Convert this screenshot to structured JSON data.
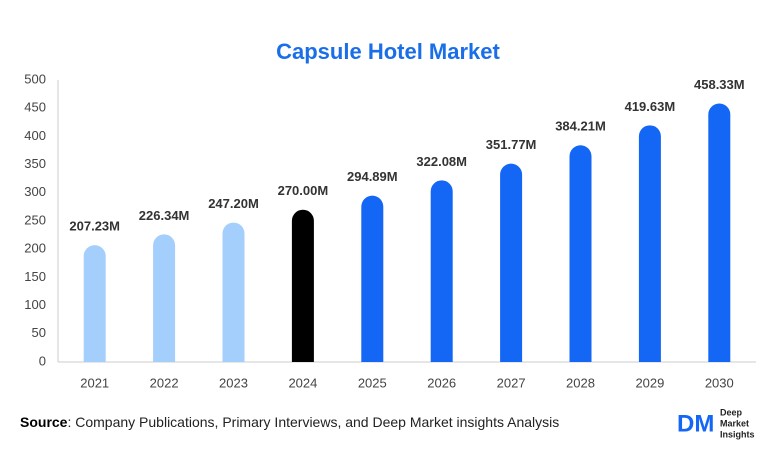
{
  "chart_data": {
    "type": "bar",
    "title": "Capsule Hotel Market",
    "categories": [
      "2021",
      "2022",
      "2023",
      "2024",
      "2025",
      "2026",
      "2027",
      "2028",
      "2029",
      "2030"
    ],
    "values": [
      207.23,
      226.34,
      247.2,
      270.0,
      294.89,
      322.08,
      351.77,
      384.21,
      419.63,
      458.33
    ],
    "value_labels": [
      "207.23M",
      "226.34M",
      "247.20M",
      "270.00M",
      "294.89M",
      "322.08M",
      "351.77M",
      "384.21M",
      "419.63M",
      "458.33M"
    ],
    "colors": [
      "#a4cefb",
      "#a4cefb",
      "#a4cefb",
      "#000000",
      "#1466f5",
      "#1466f5",
      "#1466f5",
      "#1466f5",
      "#1466f5",
      "#1466f5"
    ],
    "ylim": [
      0,
      500
    ],
    "yticks": [
      0,
      50,
      100,
      150,
      200,
      250,
      300,
      350,
      400,
      450,
      500
    ],
    "grid": false
  },
  "source": {
    "label": "Source",
    "text": ": Company Publications, Primary Interviews, and Deep Market insights Analysis"
  },
  "logo": {
    "mark": "DM",
    "lines": [
      "Deep",
      "Market",
      "Insights"
    ]
  }
}
